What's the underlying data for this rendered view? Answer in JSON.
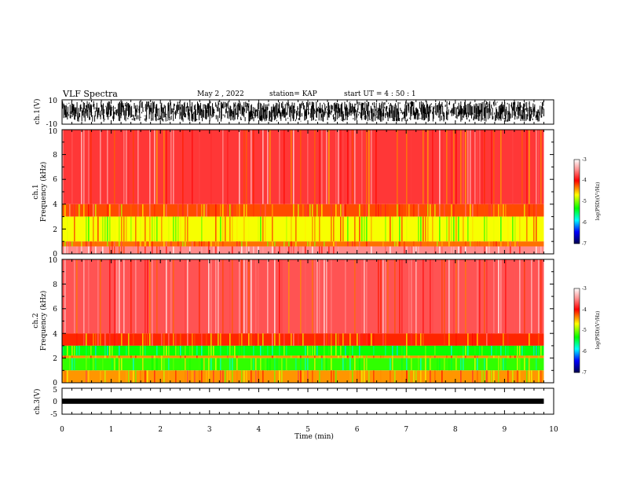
{
  "header": {
    "title": "VLF Spectra",
    "date": "May 2  , 2022",
    "station": "station= KAP",
    "start": "start  UT  =   4 : 50 : 1"
  },
  "colors": {
    "trace": "#000000",
    "strong_red": "#ff2020",
    "light_red": "#ffd0d0",
    "yellow": "#ffff00",
    "green": "#30f030"
  },
  "chart_data": [
    {
      "type": "line",
      "panel": "ch1-waveform",
      "ylabel": "ch.1(V)",
      "ylim": [
        -10,
        10
      ],
      "y_ticks": [
        "10",
        "-10"
      ],
      "x": [
        0,
        1,
        2,
        3,
        4,
        5,
        6,
        7,
        8,
        9,
        9.8
      ],
      "y_min": [
        -8,
        -8,
        -8,
        -8,
        -8,
        -8,
        -8,
        -8,
        -8,
        -8,
        -8
      ],
      "y_max": [
        9,
        9,
        9,
        9,
        9,
        9,
        9,
        9,
        9,
        9,
        9
      ]
    },
    {
      "type": "heatmap",
      "panel": "ch1-spectrogram",
      "ylabel": "ch.1",
      "ylabel2": "Frequency  (kHz)",
      "ylim": [
        0,
        10
      ],
      "y_ticks": [
        "0",
        "2",
        "4",
        "6",
        "8",
        "10"
      ],
      "xlim": [
        0,
        10
      ],
      "data_end_min": 9.8,
      "bands": [
        {
          "f_lo": 4.0,
          "f_hi": 10.0,
          "log_psd": -3.8
        },
        {
          "f_lo": 3.0,
          "f_hi": 4.0,
          "log_psd": -4.2
        },
        {
          "f_lo": 1.0,
          "f_hi": 3.0,
          "log_psd": -4.7
        },
        {
          "f_lo": 0.6,
          "f_hi": 1.0,
          "log_psd": -4.3
        },
        {
          "f_lo": 0.0,
          "f_hi": 0.6,
          "log_psd": -3.5
        }
      ],
      "colorbar": {
        "label": "log(PSD)(V²/Hz)",
        "range": [
          -7,
          -3
        ],
        "ticks": [
          "-3",
          "-4",
          "-5",
          "-6",
          "-7"
        ]
      }
    },
    {
      "type": "heatmap",
      "panel": "ch2-spectrogram",
      "ylabel": "ch.2",
      "ylabel2": "Frequency  (kHz)",
      "ylim": [
        0,
        10
      ],
      "y_ticks": [
        "0",
        "2",
        "4",
        "6",
        "8",
        "10"
      ],
      "xlim": [
        0,
        10
      ],
      "data_end_min": 9.8,
      "bands": [
        {
          "f_lo": 4.0,
          "f_hi": 10.0,
          "log_psd": -3.7
        },
        {
          "f_lo": 3.0,
          "f_hi": 4.0,
          "log_psd": -4.1
        },
        {
          "f_lo": 2.2,
          "f_hi": 3.0,
          "log_psd": -5.3
        },
        {
          "f_lo": 2.0,
          "f_hi": 2.2,
          "log_psd": -4.4
        },
        {
          "f_lo": 1.0,
          "f_hi": 2.0,
          "log_psd": -5.2
        },
        {
          "f_lo": 0.0,
          "f_hi": 1.0,
          "log_psd": -4.4
        }
      ],
      "colorbar": {
        "label": "log(PSD)(V²/Hz)",
        "range": [
          -7,
          -3
        ],
        "ticks": [
          "-3",
          "-4",
          "-5",
          "-6",
          "-7"
        ]
      }
    },
    {
      "type": "line",
      "panel": "ch3-waveform",
      "ylabel": "ch.3(V)",
      "ylim": [
        -5,
        5
      ],
      "y_ticks": [
        "5",
        "0",
        "-5"
      ],
      "x": [
        0,
        9.8
      ],
      "y_min": [
        -1,
        -1
      ],
      "y_max": [
        1,
        1
      ],
      "xlabel": "Time  (min)",
      "xlim": [
        0,
        10
      ],
      "x_ticks": [
        "0",
        "1",
        "2",
        "3",
        "4",
        "5",
        "6",
        "7",
        "8",
        "9",
        "10"
      ]
    }
  ]
}
